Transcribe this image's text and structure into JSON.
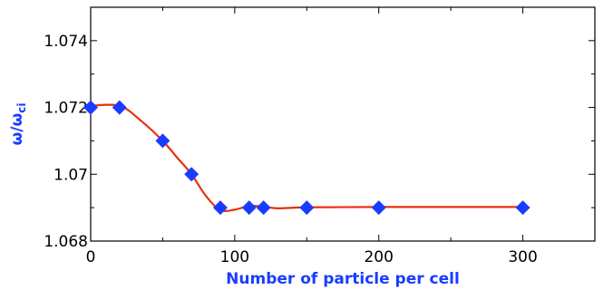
{
  "chart_data": {
    "type": "line",
    "title": "",
    "xlabel": "Number of particle per cell",
    "ylabel_main": "ω/ω",
    "ylabel_sub": "ci",
    "xlim": [
      0,
      350
    ],
    "ylim": [
      1.068,
      1.075
    ],
    "x_ticks": [
      0,
      100,
      200,
      300
    ],
    "x_tick_labels": [
      "0",
      "100",
      "200",
      "300"
    ],
    "y_ticks": [
      1.068,
      1.07,
      1.072,
      1.074
    ],
    "y_tick_labels": [
      "1.068",
      "1.07",
      "1.072",
      "1.074"
    ],
    "grid": false,
    "colors": {
      "axis_label": "#1a3cff",
      "marker": "#1a3cff",
      "curve": "#e8300f",
      "frame": "#000000"
    },
    "series": [
      {
        "marker": "diamond",
        "x": [
          0,
          20,
          50,
          70,
          90,
          110,
          120,
          150,
          200,
          300
        ],
        "y": [
          1.072,
          1.072,
          1.071,
          1.07,
          1.069,
          1.069,
          1.069,
          1.069,
          1.069,
          1.069
        ]
      }
    ],
    "fit_curve": {
      "x": [
        0,
        20,
        35,
        50,
        60,
        70,
        80,
        90,
        100,
        110,
        120,
        130,
        150,
        200,
        300
      ],
      "y": [
        1.07205,
        1.07205,
        1.0716,
        1.071,
        1.0705,
        1.07,
        1.06935,
        1.06893,
        1.06894,
        1.06905,
        1.06903,
        1.06898,
        1.06901,
        1.06902,
        1.06902
      ]
    }
  }
}
